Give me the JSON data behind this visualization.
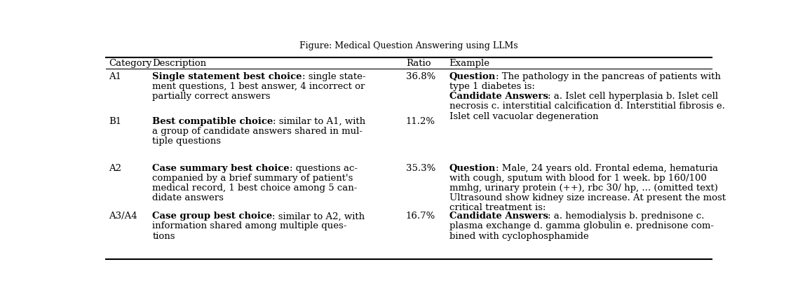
{
  "title": "Figure: Medical Question Answering using LLMs",
  "columns": [
    "Category",
    "Description",
    "Ratio",
    "Example"
  ],
  "background_color": "#ffffff",
  "text_color": "#000000",
  "font_size": 9.5,
  "rows": [
    {
      "category": "A1",
      "desc_lines": [
        [
          {
            "text": "Single statement best choice",
            "bold": true
          },
          {
            "text": ": single state-",
            "bold": false
          }
        ],
        [
          {
            "text": "ment questions, 1 best answer, 4 incorrect or",
            "bold": false
          }
        ],
        [
          {
            "text": "partially correct answers",
            "bold": false
          }
        ]
      ],
      "ratio": "36.8%",
      "ex_lines": [
        [
          {
            "text": "Question",
            "bold": true
          },
          {
            "text": ": The pathology in the pancreas of patients with",
            "bold": false
          }
        ],
        [
          {
            "text": "type 1 diabetes is:",
            "bold": false
          }
        ],
        [
          {
            "text": "Candidate Answers",
            "bold": true
          },
          {
            "text": ": a. Islet cell hyperplasia b. Islet cell",
            "bold": false
          }
        ],
        [
          {
            "text": "necrosis c. interstitial calcification d. Interstitial fibrosis e.",
            "bold": false
          }
        ],
        [
          {
            "text": "Islet cell vacuolar degeneration",
            "bold": false
          }
        ]
      ]
    },
    {
      "category": "B1",
      "desc_lines": [
        [
          {
            "text": "Best compatible choice",
            "bold": true
          },
          {
            "text": ": similar to A1, with",
            "bold": false
          }
        ],
        [
          {
            "text": "a group of candidate answers shared in mul-",
            "bold": false
          }
        ],
        [
          {
            "text": "tiple questions",
            "bold": false
          }
        ]
      ],
      "ratio": "11.2%",
      "ex_lines": []
    },
    {
      "category": "A2",
      "desc_lines": [
        [
          {
            "text": "Case summary best choice",
            "bold": true
          },
          {
            "text": ": questions ac-",
            "bold": false
          }
        ],
        [
          {
            "text": "companied by a brief summary of patient's",
            "bold": false
          }
        ],
        [
          {
            "text": "medical record, 1 best choice among 5 can-",
            "bold": false
          }
        ],
        [
          {
            "text": "didate answers",
            "bold": false
          }
        ]
      ],
      "ratio": "35.3%",
      "ex_lines": [
        [
          {
            "text": "Question",
            "bold": true
          },
          {
            "text": ": Male, 24 years old. Frontal edema, hematuria",
            "bold": false
          }
        ],
        [
          {
            "text": "with cough, sputum with blood for 1 week. bp 160/100",
            "bold": false
          }
        ],
        [
          {
            "text": "mmhg, urinary protein (++), rbc 30/ hp, ... (omitted text)",
            "bold": false
          }
        ],
        [
          {
            "text": "Ultrasound show kidney size increase. At present the most",
            "bold": false
          }
        ],
        [
          {
            "text": "critical treatment is:",
            "bold": false
          }
        ]
      ]
    },
    {
      "category": "A3/A4",
      "desc_lines": [
        [
          {
            "text": "Case group best choice",
            "bold": true
          },
          {
            "text": ": similar to A2, with",
            "bold": false
          }
        ],
        [
          {
            "text": "information shared among multiple ques-",
            "bold": false
          }
        ],
        [
          {
            "text": "tions",
            "bold": false
          }
        ]
      ],
      "ratio": "16.7%",
      "ex_lines": [
        [
          {
            "text": "Candidate Answers",
            "bold": true
          },
          {
            "text": ": a. hemodialysis b. prednisone c.",
            "bold": false
          }
        ],
        [
          {
            "text": "plasma exchange d. gamma globulin e. prednisone com-",
            "bold": false
          }
        ],
        [
          {
            "text": "bined with cyclophosphamide",
            "bold": false
          }
        ]
      ]
    }
  ]
}
